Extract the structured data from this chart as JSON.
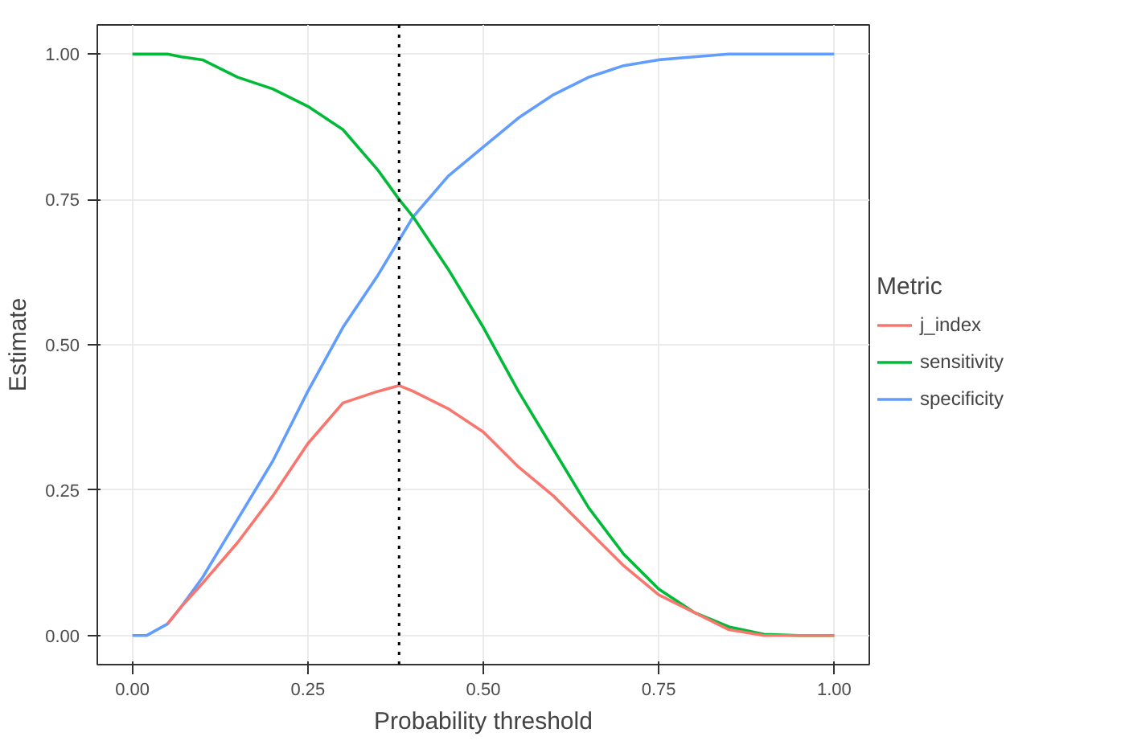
{
  "chart_data": {
    "type": "line",
    "xlabel": "Probability threshold",
    "ylabel": "Estimate",
    "legend_title": "Metric",
    "legend": "right",
    "x": [
      0,
      0.02,
      0.05,
      0.07,
      0.1,
      0.15,
      0.2,
      0.25,
      0.3,
      0.35,
      0.38,
      0.4,
      0.45,
      0.5,
      0.55,
      0.6,
      0.65,
      0.7,
      0.75,
      0.8,
      0.85,
      0.9,
      0.95,
      1
    ],
    "series": [
      {
        "name": "j_index",
        "color": "#f8766d",
        "x": [
          0.05,
          0.07,
          0.1,
          0.15,
          0.2,
          0.25,
          0.3,
          0.35,
          0.38,
          0.4,
          0.45,
          0.5,
          0.55,
          0.6,
          0.65,
          0.7,
          0.75,
          0.8,
          0.85,
          0.9,
          0.95,
          1
        ],
        "values": [
          0.02,
          0.05,
          0.09,
          0.16,
          0.24,
          0.33,
          0.4,
          0.42,
          0.43,
          0.42,
          0.39,
          0.35,
          0.29,
          0.24,
          0.18,
          0.12,
          0.07,
          0.04,
          0.01,
          0,
          0,
          0
        ]
      },
      {
        "name": "sensitivity",
        "color": "#00ba38",
        "values": [
          1,
          1,
          1,
          0.995,
          0.99,
          0.96,
          0.94,
          0.91,
          0.87,
          0.8,
          0.75,
          0.72,
          0.63,
          0.53,
          0.42,
          0.32,
          0.22,
          0.14,
          0.08,
          0.04,
          0.015,
          0.002,
          0,
          0
        ]
      },
      {
        "name": "specificity",
        "color": "#619cff",
        "values": [
          0,
          0,
          0.02,
          0.05,
          0.1,
          0.2,
          0.3,
          0.42,
          0.53,
          0.62,
          0.68,
          0.72,
          0.79,
          0.84,
          0.89,
          0.93,
          0.96,
          0.98,
          0.99,
          0.995,
          1,
          1,
          1,
          1
        ]
      }
    ],
    "xlim": [
      -0.05,
      1.05
    ],
    "ylim": [
      -0.05,
      1.05
    ],
    "xticks": [
      {
        "value": 0,
        "label": "0.00"
      },
      {
        "value": 0.25,
        "label": "0.25"
      },
      {
        "value": 0.5,
        "label": "0.50"
      },
      {
        "value": 0.75,
        "label": "0.75"
      },
      {
        "value": 1,
        "label": "1.00"
      }
    ],
    "yticks": [
      {
        "value": 0,
        "label": "0.00"
      },
      {
        "value": 0.25,
        "label": "0.25"
      },
      {
        "value": 0.5,
        "label": "0.50"
      },
      {
        "value": 0.75,
        "label": "0.75"
      },
      {
        "value": 1,
        "label": "1.00"
      }
    ],
    "ref_lines": [
      {
        "axis": "x",
        "value": 0.38,
        "color": "#000000",
        "line_style": "dotted"
      }
    ],
    "grid": true,
    "line_style": "solid"
  }
}
